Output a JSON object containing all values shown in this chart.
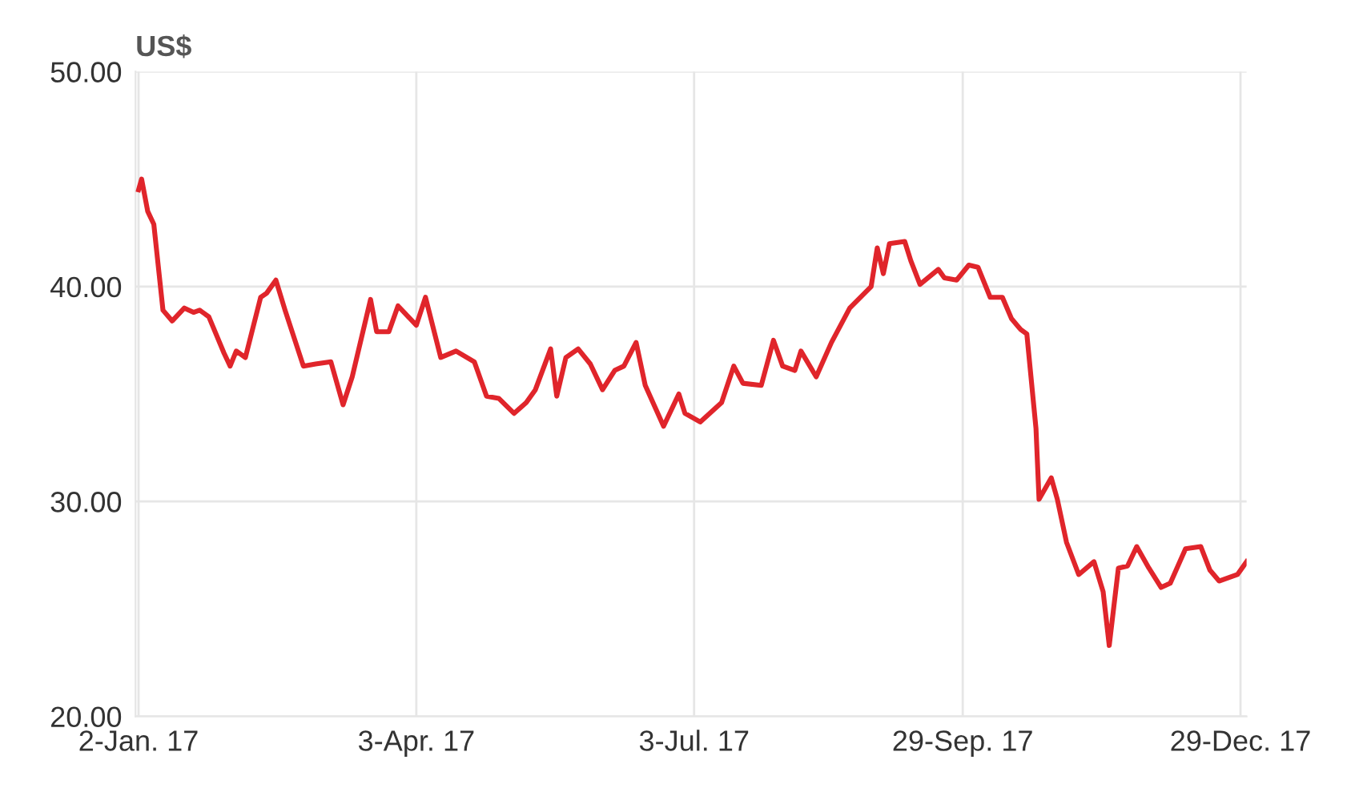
{
  "chart_data": {
    "type": "line",
    "ylabel": "US$",
    "x": [
      "2017-01-02",
      "2017-01-03",
      "2017-01-05",
      "2017-01-07",
      "2017-01-10",
      "2017-01-13",
      "2017-01-17",
      "2017-01-20",
      "2017-01-22",
      "2017-01-25",
      "2017-01-30",
      "2017-02-01",
      "2017-02-03",
      "2017-02-06",
      "2017-02-11",
      "2017-02-13",
      "2017-02-16",
      "2017-02-19",
      "2017-02-25",
      "2017-03-01",
      "2017-03-06",
      "2017-03-10",
      "2017-03-13",
      "2017-03-19",
      "2017-03-21",
      "2017-03-25",
      "2017-03-28",
      "2017-04-03",
      "2017-04-06",
      "2017-04-11",
      "2017-04-16",
      "2017-04-22",
      "2017-04-26",
      "2017-04-30",
      "2017-05-05",
      "2017-05-09",
      "2017-05-12",
      "2017-05-17",
      "2017-05-19",
      "2017-05-22",
      "2017-05-26",
      "2017-05-30",
      "2017-06-03",
      "2017-06-07",
      "2017-06-10",
      "2017-06-14",
      "2017-06-17",
      "2017-06-23",
      "2017-06-28",
      "2017-06-30",
      "2017-07-05",
      "2017-07-12",
      "2017-07-16",
      "2017-07-19",
      "2017-07-25",
      "2017-07-29",
      "2017-08-01",
      "2017-08-05",
      "2017-08-07",
      "2017-08-12",
      "2017-08-17",
      "2017-08-23",
      "2017-08-30",
      "2017-09-01",
      "2017-09-03",
      "2017-09-05",
      "2017-09-10",
      "2017-09-12",
      "2017-09-15",
      "2017-09-21",
      "2017-09-23",
      "2017-09-27",
      "2017-10-01",
      "2017-10-04",
      "2017-10-08",
      "2017-10-12",
      "2017-10-15",
      "2017-10-18",
      "2017-10-20",
      "2017-10-23",
      "2017-10-24",
      "2017-10-28",
      "2017-10-30",
      "2017-11-02",
      "2017-11-06",
      "2017-11-11",
      "2017-11-14",
      "2017-11-16",
      "2017-11-19",
      "2017-11-22",
      "2017-11-25",
      "2017-11-29",
      "2017-12-03",
      "2017-12-06",
      "2017-12-11",
      "2017-12-16",
      "2017-12-19",
      "2017-12-22",
      "2017-12-28",
      "2017-12-31"
    ],
    "series": [
      {
        "color": "#e0252b",
        "values": [
          44.5,
          45.0,
          43.5,
          42.9,
          38.9,
          38.4,
          39.0,
          38.8,
          38.9,
          38.6,
          36.9,
          36.3,
          37.0,
          36.7,
          39.5,
          39.7,
          40.3,
          38.9,
          36.3,
          36.4,
          36.5,
          34.5,
          35.8,
          39.4,
          37.9,
          37.9,
          39.1,
          38.2,
          39.5,
          36.7,
          37.0,
          36.5,
          34.9,
          34.8,
          34.1,
          34.6,
          35.2,
          37.1,
          34.9,
          36.7,
          37.1,
          36.4,
          35.2,
          36.1,
          36.3,
          37.4,
          35.4,
          33.5,
          35.0,
          34.1,
          33.7,
          34.6,
          36.3,
          35.5,
          35.4,
          37.5,
          36.3,
          36.1,
          37.0,
          35.8,
          37.4,
          39.0,
          40.0,
          41.8,
          40.6,
          42.0,
          42.1,
          41.2,
          40.1,
          40.8,
          40.4,
          40.3,
          41.0,
          40.9,
          39.5,
          39.5,
          38.5,
          38.0,
          37.8,
          33.4,
          30.1,
          31.1,
          30.1,
          28.1,
          26.6,
          27.2,
          25.8,
          23.3,
          26.9,
          27.0,
          27.9,
          26.9,
          26.0,
          26.2,
          27.8,
          27.9,
          26.8,
          26.3,
          26.6,
          27.2
        ]
      }
    ],
    "xlim": [
      "2017-01-01",
      "2017-12-31"
    ],
    "xticks": [
      {
        "value": "2017-01-02",
        "label": "2-Jan. 17"
      },
      {
        "value": "2017-04-03",
        "label": "3-Apr. 17"
      },
      {
        "value": "2017-07-03",
        "label": "3-Jul. 17"
      },
      {
        "value": "2017-09-29",
        "label": "29-Sep. 17"
      },
      {
        "value": "2017-12-29",
        "label": "29-Dec. 17"
      }
    ],
    "ylim": [
      20,
      50
    ],
    "yticks": [
      {
        "value": 20,
        "label": "20.00"
      },
      {
        "value": 30,
        "label": "30.00"
      },
      {
        "value": 40,
        "label": "40.00"
      },
      {
        "value": 50,
        "label": "50.00"
      }
    ],
    "grid": true,
    "marker": "none",
    "line_style": "solid"
  }
}
